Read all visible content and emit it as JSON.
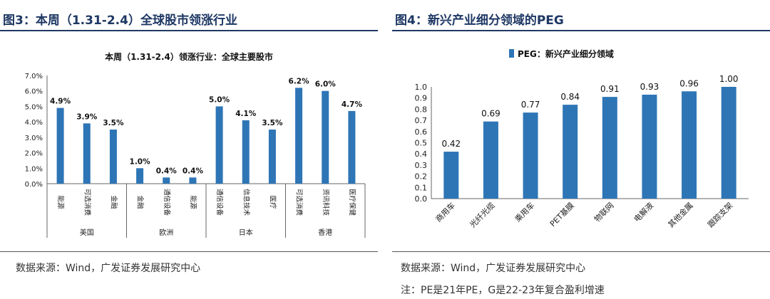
{
  "left": {
    "figure_title": "图3：本周（1.31-2.4）全球股市领涨行业",
    "source": "数据来源：Wind，广发证券发展研究中心",
    "colors": {
      "bar": "#2e75b6",
      "title": "#1f3864"
    },
    "chart_data": {
      "type": "bar",
      "title": "本周（1.31-2.4）领涨行业：全球主要股市",
      "ylim": [
        0,
        7
      ],
      "yticks": [
        "0.0%",
        "1.0%",
        "2.0%",
        "3.0%",
        "4.0%",
        "5.0%",
        "6.0%",
        "7.0%"
      ],
      "categories": [
        "能源",
        "可选消费",
        "金融",
        "金融",
        "通信设备",
        "能源",
        "通信设备",
        "信息技术",
        "医疗",
        "可选消费",
        "资讯科技",
        "医疗保健"
      ],
      "values": [
        4.9,
        3.9,
        3.5,
        1.0,
        0.4,
        0.4,
        5.0,
        4.1,
        3.5,
        6.2,
        6.0,
        4.7
      ],
      "value_labels": [
        "4.9%",
        "3.9%",
        "3.5%",
        "1.0%",
        "0.4%",
        "0.4%",
        "5.0%",
        "4.1%",
        "3.5%",
        "6.2%",
        "6.0%",
        "4.7%"
      ],
      "groups": [
        {
          "name": "美国",
          "count": 3
        },
        {
          "name": "欧洲",
          "count": 3
        },
        {
          "name": "日本",
          "count": 3
        },
        {
          "name": "香港",
          "count": 3
        }
      ]
    }
  },
  "right": {
    "figure_title": "图4：新兴产业细分领域的PEG",
    "source": "数据来源：Wind，广发证券发展研究中心",
    "note": "注：PE是21年PE，G是22-23年复合盈利增速",
    "colors": {
      "bar": "#2e75b6",
      "title": "#1f3864"
    },
    "chart_data": {
      "type": "bar",
      "legend": "PEG：新兴产业细分领域",
      "legend_position": "top",
      "ylim": [
        0,
        1.0
      ],
      "yticks": [
        "0.0",
        "0.1",
        "0.2",
        "0.3",
        "0.4",
        "0.5",
        "0.6",
        "0.7",
        "0.8",
        "0.9",
        "1.0"
      ],
      "categories": [
        "商用车",
        "光纤光缆",
        "乘用车",
        "PET基膜",
        "物联网",
        "电解液",
        "其他金属",
        "跟踪支架"
      ],
      "values": [
        0.42,
        0.69,
        0.77,
        0.84,
        0.91,
        0.93,
        0.96,
        1.0
      ],
      "value_labels": [
        "0.42",
        "0.69",
        "0.77",
        "0.84",
        "0.91",
        "0.93",
        "0.96",
        "1.00"
      ]
    }
  }
}
